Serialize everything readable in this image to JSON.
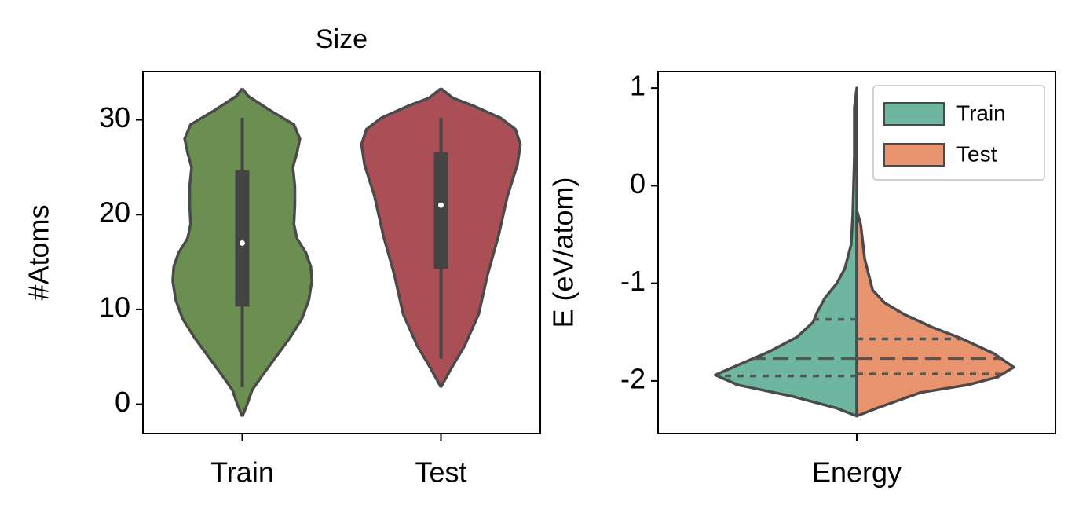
{
  "chart_data": [
    {
      "type": "violin",
      "title": "Size",
      "ylabel": "#Atoms",
      "categories": [
        "Train",
        "Test"
      ],
      "colors": [
        "#6a8f50",
        "#a94f55"
      ],
      "ylim": [
        -3.1,
        35.1
      ],
      "yticks": [
        0,
        10,
        20,
        30
      ],
      "violins": [
        {
          "kde_y": [
            33.3,
            32.5,
            31,
            29.5,
            28,
            26.5,
            25,
            23,
            21,
            19,
            17.5,
            16,
            14.5,
            13,
            11,
            9,
            7,
            5,
            3,
            1.5,
            0,
            -1.3
          ],
          "kde_width": [
            0,
            0.03,
            0.14,
            0.26,
            0.29,
            0.275,
            0.255,
            0.265,
            0.265,
            0.26,
            0.275,
            0.32,
            0.345,
            0.35,
            0.335,
            0.3,
            0.24,
            0.17,
            0.1,
            0.05,
            0.025,
            0
          ],
          "whisker_low": 1.8,
          "q1": 10.3,
          "median": 17,
          "q3": 24.7,
          "whisker_high": 30.2
        },
        {
          "kde_y": [
            33.3,
            32.3,
            31.5,
            30.2,
            29,
            27.4,
            25.3,
            22,
            17.8,
            13.7,
            9.5,
            6.2,
            3.7,
            1.8
          ],
          "kde_width": [
            0,
            0.06,
            0.16,
            0.3,
            0.375,
            0.4,
            0.385,
            0.335,
            0.29,
            0.235,
            0.19,
            0.12,
            0.05,
            0
          ],
          "whisker_low": 4.8,
          "q1": 14.3,
          "median": 21,
          "q3": 26.6,
          "whisker_high": 30.2
        }
      ]
    },
    {
      "type": "violin",
      "split": true,
      "ylabel": "E (eV/atom)",
      "categories": [
        "Energy"
      ],
      "ylim": [
        -2.54,
        1.17
      ],
      "yticks": [
        1,
        0,
        -1,
        -2
      ],
      "legend": "upper right",
      "series": [
        {
          "name": "Train",
          "color": "#6fb6a0",
          "kde_y": [
            1,
            0.8,
            0.3,
            -0.3,
            -0.6,
            -0.85,
            -1.0,
            -1.15,
            -1.3,
            -1.4,
            -1.55,
            -1.7,
            -1.84,
            -1.94,
            -2.04,
            -2.16,
            -2.28,
            -2.36
          ],
          "kde_width": [
            0,
            0.006,
            0.006,
            0.01,
            0.014,
            0.03,
            0.05,
            0.08,
            0.1,
            0.11,
            0.15,
            0.22,
            0.3,
            0.356,
            0.3,
            0.16,
            0.05,
            0
          ],
          "q1": -1.95,
          "median": -1.77,
          "q3": -1.37
        },
        {
          "name": "Test",
          "color": "#e8956f",
          "kde_y": [
            -0.25,
            -0.4,
            -0.75,
            -1.07,
            -1.2,
            -1.32,
            -1.45,
            -1.56,
            -1.72,
            -1.86,
            -1.96,
            -2.04,
            -2.12,
            -2.28,
            -2.36
          ],
          "kde_width": [
            0,
            0.01,
            0.02,
            0.04,
            0.07,
            0.12,
            0.19,
            0.26,
            0.345,
            0.395,
            0.355,
            0.28,
            0.16,
            0.05,
            0
          ],
          "q1": -1.93,
          "median": -1.77,
          "q3": -1.57
        }
      ]
    }
  ]
}
